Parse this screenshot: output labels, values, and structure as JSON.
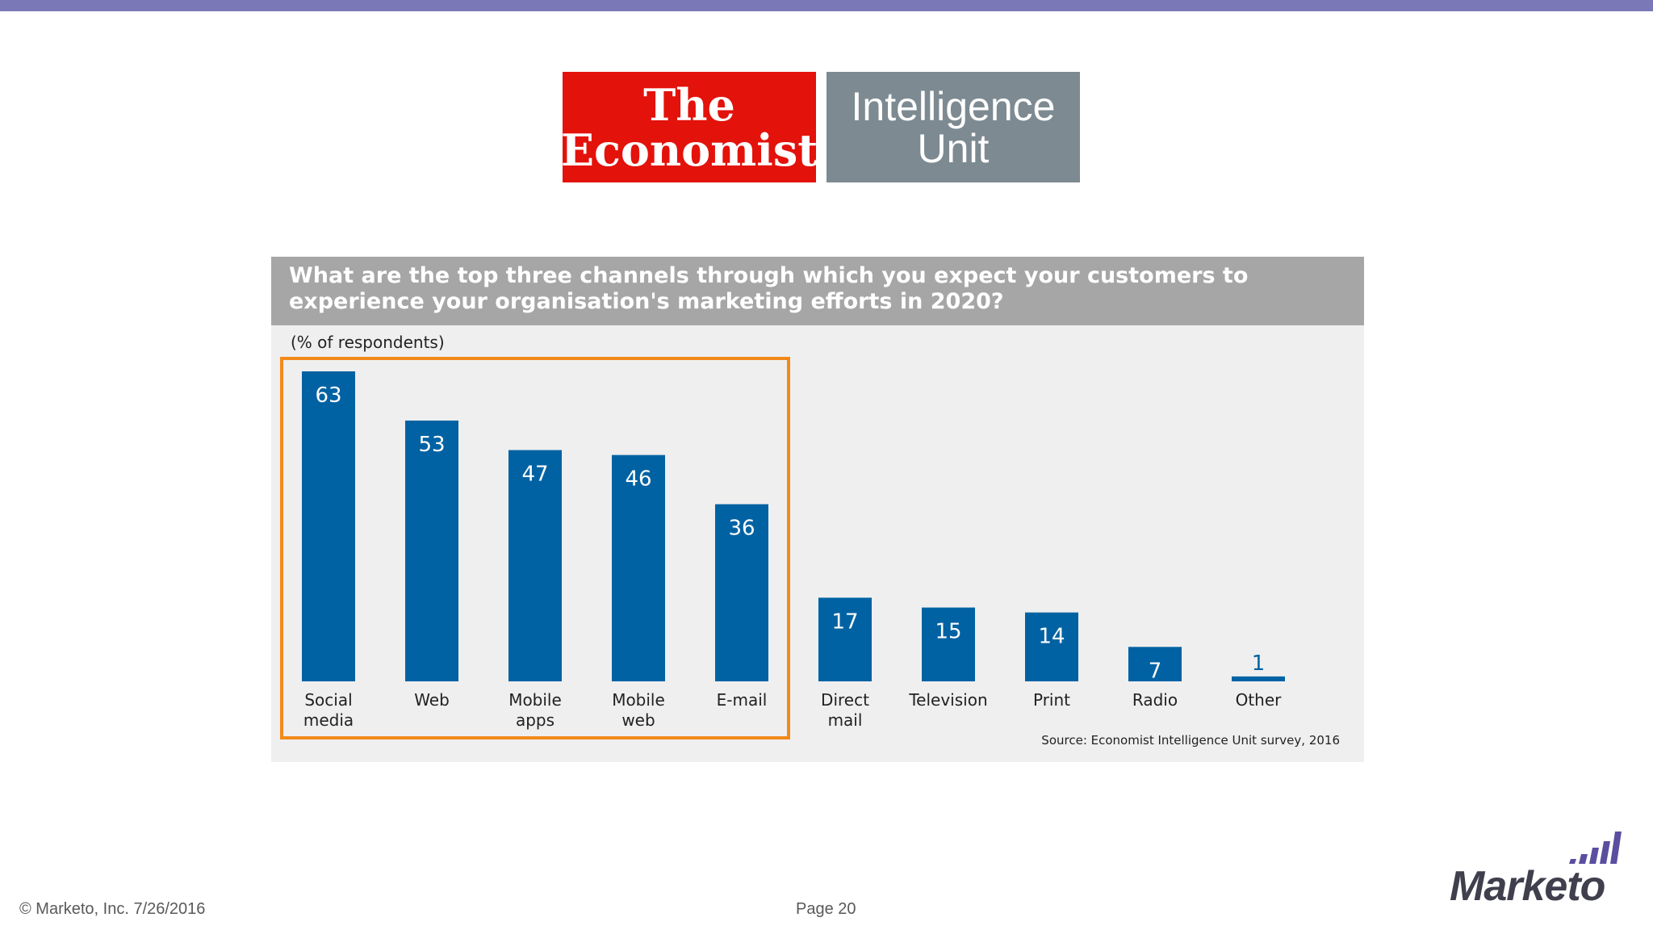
{
  "colors": {
    "bar": "#0062a3",
    "highlight": "#f28a1a",
    "top_bar": "#7b78b8"
  },
  "logo": {
    "economist_line1": "The",
    "economist_line2": "Economist",
    "eiu_line1": "Intelligence",
    "eiu_line2": "Unit"
  },
  "chart_data": {
    "type": "bar",
    "title": "What are the top three channels through which you expect your customers to experience your organisation's marketing efforts in 2020?",
    "unit_label": "(% of respondents)",
    "categories": [
      [
        "Social",
        "media"
      ],
      [
        "Web"
      ],
      [
        "Mobile",
        "apps"
      ],
      [
        "Mobile",
        "web"
      ],
      [
        "E-mail"
      ],
      [
        "Direct",
        "mail"
      ],
      [
        "Television"
      ],
      [
        "Print"
      ],
      [
        "Radio"
      ],
      [
        "Other"
      ]
    ],
    "values": [
      63,
      53,
      47,
      46,
      36,
      17,
      15,
      14,
      7,
      1
    ],
    "highlighted_count": 5,
    "ylim": [
      0,
      63
    ],
    "source": "Source: Economist Intelligence Unit survey, 2016"
  },
  "footer": {
    "copyright": "© Marketo, Inc.  7/26/2016",
    "page": "Page 20"
  },
  "brand": {
    "name": "Marketo"
  }
}
